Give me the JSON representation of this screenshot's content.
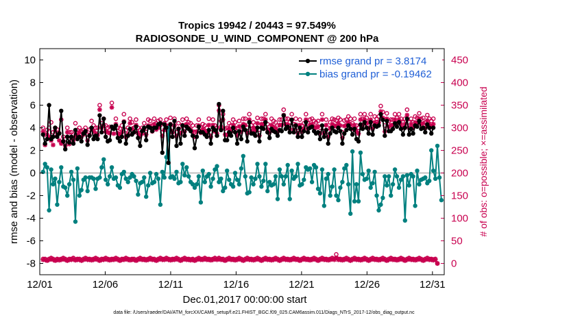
{
  "chart_data": {
    "type": "line",
    "title_line1": "Tropics 19942 / 20443 = 97.549%",
    "title_line2": "RADIOSONDE_U_WIND_COMPONENT @ 200 hPa",
    "xlabel": "Dec.01,2017 00:00:00 start",
    "ylabel": "rmse and bias (model - observation)",
    "y2label": "# of obs: o=possible; ×=assimilated",
    "footnote": "data file: /Users/raeder/DAI/ATM_forcXX/CAM6_setup/f.e21.FHIST_BGC.f09_025.CAM6assim.011/Diags_NTrS_2017-12/obs_diag_output.nc",
    "xlim": [
      0,
      30.9
    ],
    "ylim": [
      -9,
      11
    ],
    "y2lim": [
      -25,
      475
    ],
    "x_ticks": [
      0,
      5,
      10,
      15,
      20,
      25,
      30
    ],
    "x_tick_labels": [
      "12/01",
      "12/06",
      "12/11",
      "12/16",
      "12/21",
      "12/26",
      "12/31"
    ],
    "y_ticks": [
      -8,
      -6,
      -4,
      -2,
      0,
      2,
      4,
      6,
      8,
      10
    ],
    "y_tick_labels": [
      "-8",
      "-6",
      "-4",
      "-2",
      "0",
      "2",
      "4",
      "6",
      "8",
      "10"
    ],
    "y2_ticks": [
      0,
      50,
      100,
      150,
      200,
      250,
      300,
      350,
      400,
      450
    ],
    "y2_tick_labels": [
      "0",
      "50",
      "100",
      "150",
      "200",
      "250",
      "300",
      "350",
      "400",
      "450"
    ],
    "colors": {
      "rmse": "#000000",
      "bias": "#00807f",
      "obs": "#c8004f",
      "legend_text": "#1f5fd6",
      "zero_line": "#b0b0b0"
    },
    "series": [
      {
        "name": "rmse grand pr = 3.8174",
        "values": [
          3.4,
          2.6,
          3.0,
          6.0,
          3.0,
          3.2,
          4.0,
          3.2,
          3.5,
          5.5,
          2.8,
          2.1,
          3.2,
          2.7,
          3.2,
          2.6,
          3.8,
          3.0,
          3.2,
          2.8,
          3.5,
          3.7,
          2.5,
          3.3,
          4.0,
          3.0,
          3.3,
          3.0,
          5.1,
          3.6,
          4.8,
          3.2,
          2.8,
          2.9,
          4.1,
          3.9,
          4.2,
          3.1,
          2.8,
          3.2,
          4.5,
          2.6,
          3.3,
          3.9,
          3.4,
          3.6,
          4.1,
          3.1,
          2.4,
          3.7,
          4.0,
          2.9,
          4.1,
          4.0,
          3.7,
          4.0,
          4.0,
          4.3,
          4.4,
          1.8,
          4.3,
          4.0,
          0.9,
          4.3,
          3.2,
          4.6,
          2.4,
          3.9,
          2.6,
          4.2,
          3.3,
          4.1,
          3.9,
          3.7,
          3.3,
          2.2,
          3.2,
          4.1,
          3.6,
          3.6,
          3.4,
          3.2,
          3.8,
          2.6,
          4.0,
          3.8,
          3.3,
          6.1,
          3.8,
          5.5,
          2.9,
          2.9,
          3.6,
          3.3,
          4.0,
          3.6,
          2.6,
          3.7,
          3.0,
          4.1,
          3.8,
          2.8,
          4.5,
          3.5,
          3.5,
          3.3,
          4.0,
          2.8,
          4.0,
          3.9,
          4.5,
          3.6,
          3.1,
          3.9,
          3.7,
          3.6,
          3.3,
          3.8,
          3.7,
          5.1,
          3.9,
          4.1,
          3.6,
          4.7,
          3.6,
          4.2,
          3.2,
          4.0,
          3.2,
          3.7,
          4.5,
          3.6,
          4.0,
          4.1,
          3.7,
          3.5,
          3.6,
          3.0,
          4.2,
          3.2,
          3.8,
          2.6,
          3.5,
          4.0,
          3.7,
          3.6,
          4.0,
          3.7,
          2.6,
          3.5,
          3.8,
          4.2,
          3.9,
          3.4,
          3.9,
          3.0,
          2.8,
          4.3,
          3.9,
          4.5,
          4.0,
          3.5,
          4.5,
          3.4,
          4.2,
          4.1,
          4.2,
          5.2,
          4.7,
          3.3,
          4.6,
          3.7,
          3.7,
          3.9,
          4.4,
          4.1,
          4.5,
          3.9,
          3.4,
          4.0,
          4.8,
          3.4,
          3.9,
          3.5,
          4.2,
          4.1,
          4.6,
          3.9,
          4.0,
          3.6,
          4.3,
          4.0,
          3.5,
          4.0
        ],
        "color": "#000000"
      },
      {
        "name": "bias grand pr = -0.19462",
        "values": [
          0.1,
          0.8,
          0.5,
          -3.3,
          0.3,
          -1.0,
          -0.5,
          -2.8,
          -0.8,
          0.5,
          -1.2,
          -1.3,
          -2.0,
          -1.0,
          0.1,
          -0.6,
          -4.3,
          0.4,
          -2.0,
          -1.5,
          -0.6,
          -0.4,
          -1.6,
          -0.4,
          -0.4,
          -0.5,
          -1.4,
          -0.5,
          -0.4,
          0.5,
          1.2,
          -0.6,
          -1.0,
          -0.3,
          0.5,
          -0.5,
          -0.4,
          -1.1,
          -1.3,
          -0.1,
          0.1,
          -0.5,
          -0.8,
          -0.4,
          -0.1,
          -0.3,
          -0.7,
          -1.9,
          -0.9,
          -0.8,
          -0.4,
          -2.1,
          -1.1,
          0.0,
          -0.9,
          -0.8,
          -0.1,
          -0.5,
          -2.8,
          0.1,
          -0.4,
          1.4,
          4.0,
          -0.4,
          -0.3,
          -0.5,
          0.1,
          -0.9,
          -0.8,
          0.8,
          -0.2,
          0.5,
          -0.3,
          -0.8,
          -1.0,
          -1.3,
          -1.0,
          -0.3,
          -2.6,
          0.2,
          -0.8,
          -0.3,
          -0.1,
          -1.2,
          -0.5,
          0.3,
          0.6,
          -0.8,
          -0.5,
          -1.6,
          -1.3,
          0.2,
          -0.6,
          -1.0,
          -1.2,
          0.0,
          -0.6,
          -1.0,
          0.4,
          1.5,
          -0.3,
          -1.8,
          -1.7,
          -0.4,
          -1.0,
          -0.5,
          0.8,
          -0.3,
          -1.2,
          -0.7,
          0.8,
          -1.6,
          -0.8,
          -1.1,
          -1.0,
          -0.3,
          -2.3,
          0.3,
          -0.3,
          -1.0,
          -0.3,
          0.7,
          -2.3,
          0.2,
          -0.5,
          -0.3,
          0.8,
          -1.1,
          -1.0,
          -0.6,
          0.5,
          0.3,
          0.4,
          -0.8,
          0.7,
          0.5,
          -1.4,
          -1.8,
          0.3,
          -2.9,
          -0.5,
          -0.1,
          -2.0,
          -1.2,
          0.3,
          -2.0,
          -2.4,
          -1.3,
          -0.8,
          0.4,
          0.7,
          -1.0,
          -3.6,
          1.9,
          -2.5,
          -1.0,
          -2.5,
          1.8,
          -0.1,
          -0.6,
          -0.5,
          0.2,
          -1.3,
          -0.9,
          0.1,
          -2.0,
          -3.3,
          -2.8,
          -2.2,
          -0.3,
          -1.1,
          -0.3,
          -2.0,
          -1.0,
          0.3,
          -0.3,
          -1.3,
          -0.6,
          -0.3,
          -4.2,
          -0.2,
          -1.1,
          -0.1,
          -0.3,
          -2.9,
          0.2,
          -1.0,
          -0.6,
          -0.5,
          -0.4,
          -0.9,
          -0.7,
          2.0,
          0.2,
          -0.5,
          2.4,
          -0.4,
          -2.4
        ],
        "color": "#00807f"
      },
      {
        "name": "obs possible",
        "marker": "o",
        "values": [
          300,
          285,
          295,
          300,
          312,
          290,
          300,
          296,
          288,
          318,
          280,
          275,
          300,
          290,
          290,
          285,
          310,
          295,
          300,
          292,
          295,
          300,
          285,
          296,
          315,
          305,
          300,
          300,
          350,
          310,
          320,
          305,
          300,
          302,
          355,
          300,
          320,
          300,
          298,
          305,
          330,
          295,
          300,
          320,
          312,
          300,
          318,
          300,
          295,
          300,
          310,
          298,
          318,
          315,
          305,
          320,
          310,
          315,
          318,
          290,
          310,
          318,
          290,
          322,
          300,
          320,
          290,
          310,
          296,
          318,
          305,
          320,
          312,
          310,
          305,
          290,
          305,
          318,
          300,
          308,
          305,
          300,
          320,
          290,
          318,
          305,
          300,
          350,
          315,
          330,
          298,
          300,
          310,
          305,
          318,
          312,
          292,
          315,
          302,
          320,
          320,
          300,
          330,
          305,
          312,
          306,
          322,
          296,
          320,
          320,
          330,
          308,
          302,
          320,
          315,
          312,
          305,
          318,
          318,
          340,
          320,
          320,
          312,
          330,
          308,
          320,
          300,
          318,
          305,
          310,
          330,
          310,
          318,
          320,
          315,
          312,
          315,
          300,
          330,
          300,
          318,
          292,
          312,
          320,
          318,
          316,
          322,
          318,
          290,
          316,
          318,
          325,
          320,
          310,
          320,
          305,
          300,
          330,
          320,
          330,
          322,
          312,
          330,
          310,
          325,
          320,
          325,
          348,
          335,
          305,
          332,
          315,
          318,
          318,
          330,
          322,
          330,
          320,
          312,
          320,
          340,
          312,
          320,
          312,
          325,
          322,
          332,
          320,
          322,
          312,
          328,
          320,
          315,
          320
        ],
        "color": "#c8004f"
      },
      {
        "name": "obs assimilated",
        "marker": "*",
        "values": [
          291,
          262,
          285,
          280,
          272,
          262,
          293,
          283,
          272,
          265,
          270,
          260,
          290,
          264,
          278,
          272,
          282,
          284,
          290,
          280,
          285,
          291,
          272,
          284,
          298,
          293,
          288,
          284,
          340,
          300,
          305,
          292,
          290,
          288,
          345,
          287,
          308,
          288,
          285,
          290,
          314,
          280,
          286,
          310,
          298,
          290,
          306,
          288,
          282,
          287,
          298,
          285,
          305,
          303,
          292,
          308,
          296,
          300,
          306,
          282,
          295,
          305,
          282,
          308,
          290,
          305,
          282,
          298,
          288,
          306,
          292,
          308,
          300,
          296,
          292,
          280,
          292,
          305,
          289,
          297,
          292,
          288,
          306,
          280,
          306,
          292,
          287,
          338,
          302,
          318,
          285,
          284,
          298,
          292,
          306,
          300,
          283,
          303,
          291,
          308,
          306,
          288,
          318,
          292,
          300,
          294,
          310,
          283,
          308,
          308,
          318,
          296,
          290,
          306,
          302,
          298,
          292,
          306,
          306,
          328,
          308,
          307,
          298,
          318,
          295,
          307,
          288,
          306,
          292,
          298,
          318,
          298,
          306,
          308,
          302,
          300,
          303,
          288,
          318,
          288,
          306,
          280,
          300,
          308,
          305,
          303,
          310,
          305,
          278,
          304,
          306,
          312,
          307,
          298,
          306,
          292,
          287,
          318,
          306,
          318,
          310,
          300,
          318,
          298,
          312,
          308,
          312,
          336,
          322,
          292,
          320,
          302,
          306,
          306,
          318,
          310,
          318,
          308,
          300,
          308,
          328,
          300,
          308,
          300,
          312,
          310,
          320,
          308,
          310,
          300,
          316,
          308,
          302,
          308
        ]
      },
      {
        "name": "obs possible late",
        "marker": "o",
        "values": [
          10,
          10,
          8,
          10,
          12,
          10,
          8,
          10,
          9,
          10,
          12,
          10,
          8,
          10,
          10,
          12,
          9,
          10,
          10,
          8,
          10,
          12,
          10,
          10,
          9,
          10,
          12,
          10,
          8,
          10,
          10,
          12,
          10,
          9,
          10,
          10,
          12,
          10,
          8,
          10,
          10,
          12,
          10,
          9,
          10,
          10,
          8,
          10,
          12,
          10,
          10,
          9,
          10,
          12,
          10,
          10,
          8,
          10,
          12,
          10,
          10,
          12,
          10,
          9,
          10,
          10,
          12,
          10,
          8,
          10,
          12,
          10,
          10,
          9,
          10,
          8,
          10,
          12,
          10,
          10,
          12,
          10,
          10,
          9,
          10,
          12,
          10,
          12,
          10,
          10,
          8,
          10,
          12,
          10,
          10,
          9,
          10,
          12,
          10,
          8,
          10,
          12,
          10,
          10,
          9,
          10,
          12,
          10,
          8,
          10,
          12,
          10,
          10,
          9,
          10,
          12,
          10,
          8,
          10,
          12,
          10,
          10,
          9,
          10,
          12,
          10,
          10,
          8,
          10,
          12,
          10,
          10,
          9,
          10,
          12,
          10,
          8,
          10,
          12,
          10,
          10,
          9,
          10,
          12,
          10,
          20,
          10,
          10,
          9,
          10,
          12,
          10,
          8,
          10,
          12,
          10,
          10,
          9,
          10,
          12,
          10,
          8,
          10,
          12,
          10,
          10,
          9,
          10,
          12,
          10,
          8,
          10,
          12,
          10,
          10,
          9,
          10,
          12,
          10,
          8,
          10,
          12,
          10,
          10,
          9,
          10,
          12,
          10,
          8,
          10,
          12,
          10,
          10,
          9,
          10,
          0
        ],
        "color": "#c8004f"
      },
      {
        "name": "obs assimilated late",
        "marker": "*",
        "values": [
          8,
          8,
          6,
          8,
          10,
          8,
          6,
          8,
          7,
          8,
          10,
          8,
          6,
          8,
          8,
          10,
          7,
          8,
          8,
          6,
          8,
          10,
          8,
          8,
          7,
          8,
          10,
          8,
          6,
          8,
          8,
          10,
          8,
          7,
          8,
          8,
          10,
          8,
          6,
          8,
          8,
          10,
          8,
          7,
          8,
          8,
          6,
          8,
          10,
          8,
          8,
          7,
          8,
          10,
          8,
          8,
          6,
          8,
          10,
          8,
          8,
          10,
          8,
          7,
          8,
          8,
          10,
          8,
          6,
          8,
          10,
          8,
          8,
          7,
          8,
          6,
          8,
          10,
          8,
          8,
          10,
          8,
          8,
          7,
          8,
          10,
          8,
          10,
          8,
          8,
          6,
          8,
          10,
          8,
          8,
          7,
          8,
          10,
          8,
          6,
          8,
          10,
          8,
          8,
          7,
          8,
          10,
          8,
          6,
          8,
          10,
          8,
          8,
          7,
          8,
          10,
          8,
          6,
          8,
          10,
          8,
          8,
          7,
          8,
          10,
          8,
          8,
          6,
          8,
          10,
          8,
          8,
          7,
          8,
          10,
          8,
          6,
          8,
          10,
          8,
          8,
          7,
          8,
          10,
          8,
          12,
          8,
          8,
          7,
          8,
          10,
          8,
          6,
          8,
          10,
          8,
          8,
          7,
          8,
          10,
          8,
          6,
          8,
          10,
          8,
          8,
          7,
          8,
          10,
          8,
          6,
          8,
          10,
          8,
          8,
          7,
          8,
          10,
          8,
          6,
          8,
          10,
          8,
          8,
          7,
          8,
          10,
          8,
          6,
          8,
          10,
          8,
          8,
          7,
          8,
          0
        ]
      }
    ],
    "legend": [
      "rmse grand pr = 3.8174",
      "bias grand pr = -0.19462"
    ],
    "legend_position": "top-right"
  }
}
